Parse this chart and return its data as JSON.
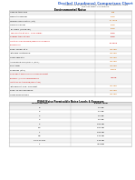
{
  "title": "Decibel (Loudness) Comparison Chart",
  "description1": "A comparison of sources that may be in a environment for users",
  "description2": "that can affect our hearing.",
  "table1_header": "Environmental Noise",
  "table1_rows": [
    [
      "Hearing threshold",
      "0dB"
    ],
    [
      "Mosquito buzzing",
      "30dB"
    ],
    [
      "Normal conversation (3 ft)",
      "60-70dB"
    ],
    [
      "Vacuum cleaner",
      "70dB"
    ],
    [
      "Tv, Traffic (inside car)",
      "70dB"
    ],
    [
      "Train whistle at 500', Truck Traffic",
      "90dB"
    ],
    [
      "Subway train at 200'",
      "95dB"
    ],
    [
      "Limit personal exposure/experiencing hearing damage risk",
      "90-95dB"
    ],
    [
      "Power mower at 3'",
      ">100dB"
    ],
    [
      "Jet plane, motorcycle",
      ">100dB"
    ],
    [
      "Chain saw at 3'",
      ">100dB"
    ],
    [
      "Ambulance siren/Civil 1 (100')",
      ">100dB"
    ],
    [
      "Fire Alarm",
      ">120dB"
    ],
    [
      "Fireworks (at 3')",
      "155dB"
    ],
    [
      "Noise about exposure can cause permanent damage - (volume recommended limitation on streaming/connection)",
      ">85dB"
    ],
    [
      "Jet engine at 100', Gun blast",
      ">140dB"
    ],
    [
      "Power of hearing device",
      ">140dB"
    ],
    [
      "LOUD ROCK BANDS",
      ">110dB"
    ]
  ],
  "table1_red_rows": [
    5,
    6,
    7,
    14
  ],
  "table2_header": "OSHA Noise Permissible Noise Levels & Exposure",
  "table2_col1_header": "Hours per day",
  "table2_col2_header": "Sound level",
  "table2_rows": [
    [
      "8",
      "90 dB"
    ],
    [
      "6",
      "92 dB"
    ],
    [
      "4",
      "95 dB"
    ],
    [
      "3",
      "97 dB"
    ],
    [
      "2",
      "100 dB"
    ],
    [
      "1.5",
      "102 dB"
    ],
    [
      "1",
      "105 dB"
    ],
    [
      "0.5",
      "110 dB"
    ],
    [
      "0.25 or less",
      "115 dB"
    ],
    [
      "1",
      ">115dB"
    ]
  ],
  "bg_color": "#ffffff",
  "title_color": "#3366cc",
  "red_color": "#cc0000",
  "orange_color": "#cc6600",
  "grid_color": "#bbbbbb",
  "alt_row_color": "#f2f2f2",
  "header_bg": "#e0e0e0"
}
